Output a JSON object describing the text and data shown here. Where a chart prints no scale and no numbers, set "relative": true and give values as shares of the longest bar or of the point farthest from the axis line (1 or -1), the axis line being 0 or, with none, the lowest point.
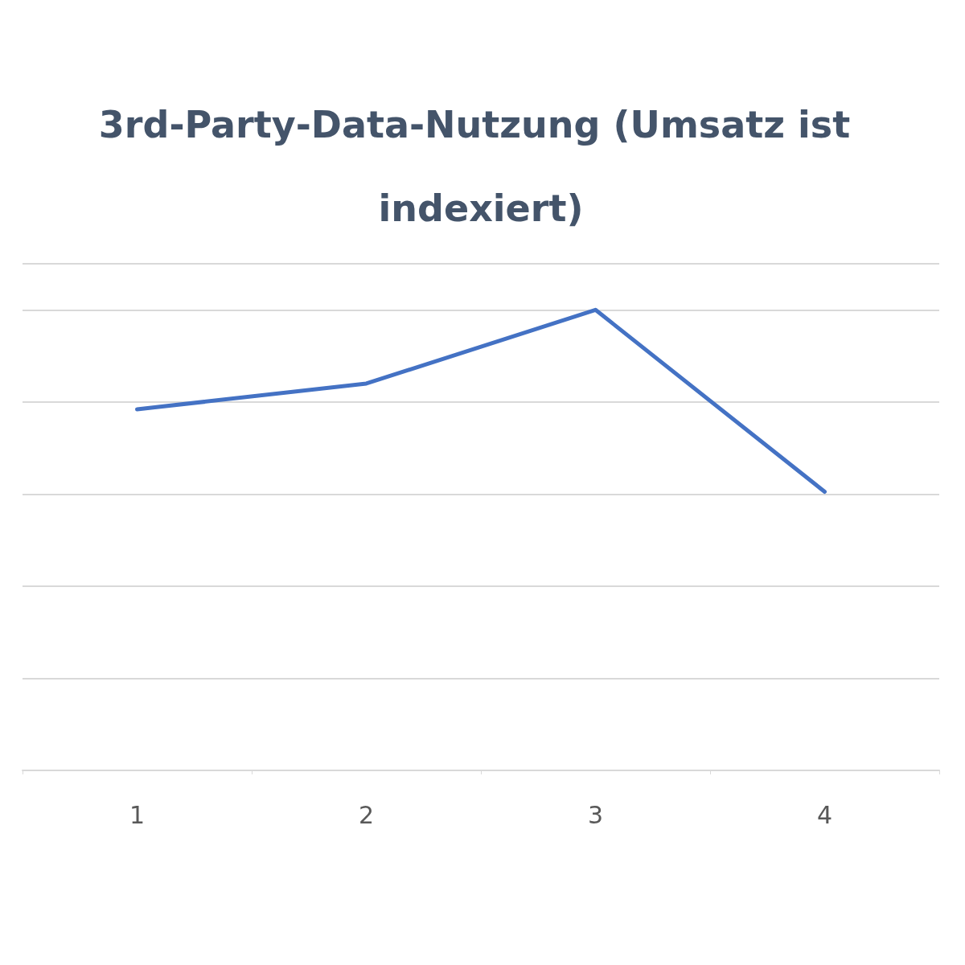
{
  "chart_data": {
    "type": "line",
    "title": "3rd-Party-Data-Nutzung (Umsatz ist indexiert)",
    "categories": [
      "1",
      "2",
      "3",
      "4"
    ],
    "relative": true,
    "series": [
      {
        "color": "#4472c4",
        "values": [
          0.784,
          0.84,
          1,
          0.605
        ]
      }
    ],
    "grid": "y",
    "marker": "none",
    "line_style": "solid"
  }
}
